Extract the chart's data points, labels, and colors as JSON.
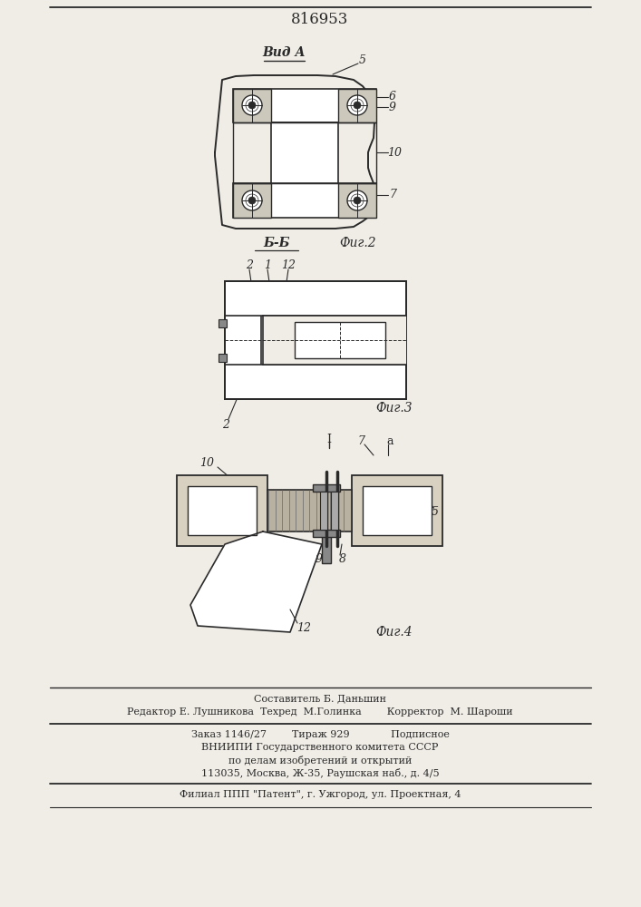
{
  "patent_number": "816953",
  "bg": "#f0ede6",
  "lc": "#2a2a2a",
  "view_label": "Вид А",
  "section_label": "Б-Б",
  "fig2_label": "Фиг.2",
  "fig3_label": "Фиг.3",
  "fig4_label": "Фиг.4",
  "footer1": "Составитель Б. Даньшин",
  "footer2": "Редактор Е. Лушникова  Техред  М.Голинка        Корректор  М. Шарoши",
  "footer3": "Заказ 1146/27        Тираж 929             Подписное",
  "footer4": "ВНИИПИ Государственного комитета СССР",
  "footer5": "по делам изобретений и открытий",
  "footer6": "113035, Москва, Ж-35, Раушская наб., д. 4/5",
  "footer7": "Филиал ППП \"Патент\", г. Ужгород, ул. Проектная, 4"
}
